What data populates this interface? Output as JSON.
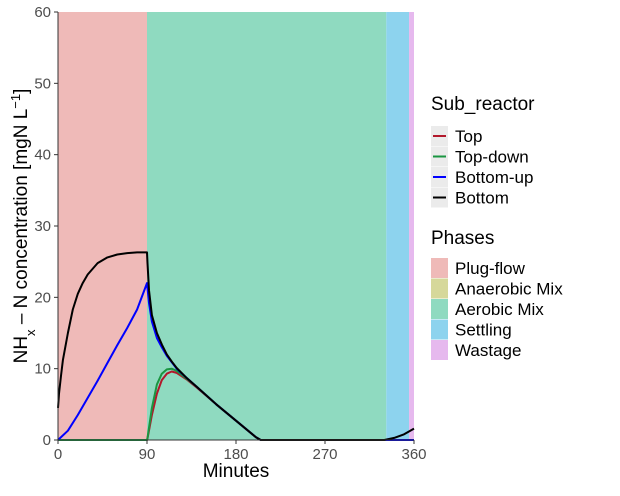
{
  "chart_data": {
    "type": "line",
    "xlabel": "Minutes",
    "ylabel_parts": [
      "NH",
      "x",
      " – N concentration [mgN L",
      "−1",
      "]"
    ],
    "xlim": [
      0,
      360
    ],
    "ylim": [
      0,
      60
    ],
    "x_ticks": [
      "0",
      "90",
      "180",
      "270",
      "360"
    ],
    "x_tick_values": [
      0,
      90,
      180,
      270,
      360
    ],
    "y_ticks": [
      "0",
      "10",
      "20",
      "30",
      "40",
      "50",
      "60"
    ],
    "y_tick_values": [
      0,
      10,
      20,
      30,
      40,
      50,
      60
    ],
    "phases": [
      {
        "name": "Plug-flow",
        "start": 0,
        "end": 90,
        "color": "#efbab8"
      },
      {
        "name": "Anaerobic Mix",
        "start": 90,
        "end": 90,
        "color": "#d6d89a"
      },
      {
        "name": "Aerobic Mix",
        "start": 90,
        "end": 332,
        "color": "#8fdac0"
      },
      {
        "name": "Settling",
        "start": 332,
        "end": 355,
        "color": "#8dd3ee"
      },
      {
        "name": "Wastage",
        "start": 355,
        "end": 360,
        "color": "#e6b9ee"
      }
    ],
    "series": [
      {
        "name": "Top",
        "color": "#b2182b",
        "x": [
          0,
          90,
          90.5,
          95,
          100,
          105,
          110,
          115,
          120,
          130,
          140,
          160,
          180,
          200,
          205,
          210,
          330,
          340,
          350,
          360
        ],
        "y": [
          0,
          0,
          0.2,
          3.5,
          6.5,
          8.4,
          9.3,
          9.6,
          9.4,
          8.5,
          7.4,
          5.0,
          2.7,
          0.4,
          0,
          0,
          0,
          0,
          0,
          0
        ]
      },
      {
        "name": "Top-down",
        "color": "#1a9641",
        "x": [
          0,
          90,
          90.5,
          95,
          100,
          105,
          110,
          115,
          120,
          130,
          140,
          160,
          180,
          200,
          205,
          210,
          330,
          340,
          350,
          360
        ],
        "y": [
          0,
          0,
          0.3,
          4.5,
          7.8,
          9.3,
          9.9,
          10.0,
          9.7,
          8.6,
          7.5,
          5.0,
          2.7,
          0.4,
          0,
          0,
          0,
          0,
          0,
          0
        ]
      },
      {
        "name": "Bottom-up",
        "color": "#0000ff",
        "x": [
          0,
          10,
          20,
          30,
          40,
          50,
          60,
          70,
          80,
          90,
          92,
          95,
          100,
          105,
          110,
          115,
          120,
          130,
          140,
          160,
          180,
          200,
          205,
          210,
          330,
          340,
          350,
          360
        ],
        "y": [
          0,
          1.3,
          3.5,
          5.9,
          8.3,
          10.8,
          13.3,
          15.7,
          18.3,
          22.0,
          19.2,
          16.6,
          14.3,
          13.0,
          11.8,
          10.9,
          10.0,
          8.7,
          7.5,
          5.0,
          2.7,
          0.4,
          0,
          0,
          0,
          0,
          0,
          0
        ]
      },
      {
        "name": "Bottom",
        "color": "#000000",
        "x": [
          0,
          1,
          3,
          5,
          10,
          15,
          20,
          25,
          30,
          40,
          50,
          60,
          70,
          80,
          90,
          90.5,
          92,
          95,
          100,
          105,
          110,
          115,
          120,
          130,
          140,
          160,
          180,
          200,
          205,
          210,
          330,
          340,
          350,
          360
        ],
        "y": [
          4.5,
          6.5,
          9.0,
          11.2,
          15.0,
          18.3,
          20.5,
          22.0,
          23.2,
          24.8,
          25.6,
          26.0,
          26.2,
          26.3,
          26.3,
          24.8,
          21.0,
          17.5,
          15.0,
          13.4,
          12.0,
          11.0,
          10.1,
          8.7,
          7.5,
          5.0,
          2.7,
          0.4,
          0,
          0,
          0,
          0.3,
          0.8,
          1.6
        ]
      }
    ],
    "legend": [
      {
        "title": "Sub_reactor",
        "entries": [
          "Top",
          "Top-down",
          "Bottom-up",
          "Bottom"
        ]
      },
      {
        "title": "Phases",
        "entries": [
          "Plug-flow",
          "Anaerobic Mix",
          "Aerobic Mix",
          "Settling",
          "Wastage"
        ]
      }
    ],
    "legend_position": "right",
    "grid": false
  }
}
